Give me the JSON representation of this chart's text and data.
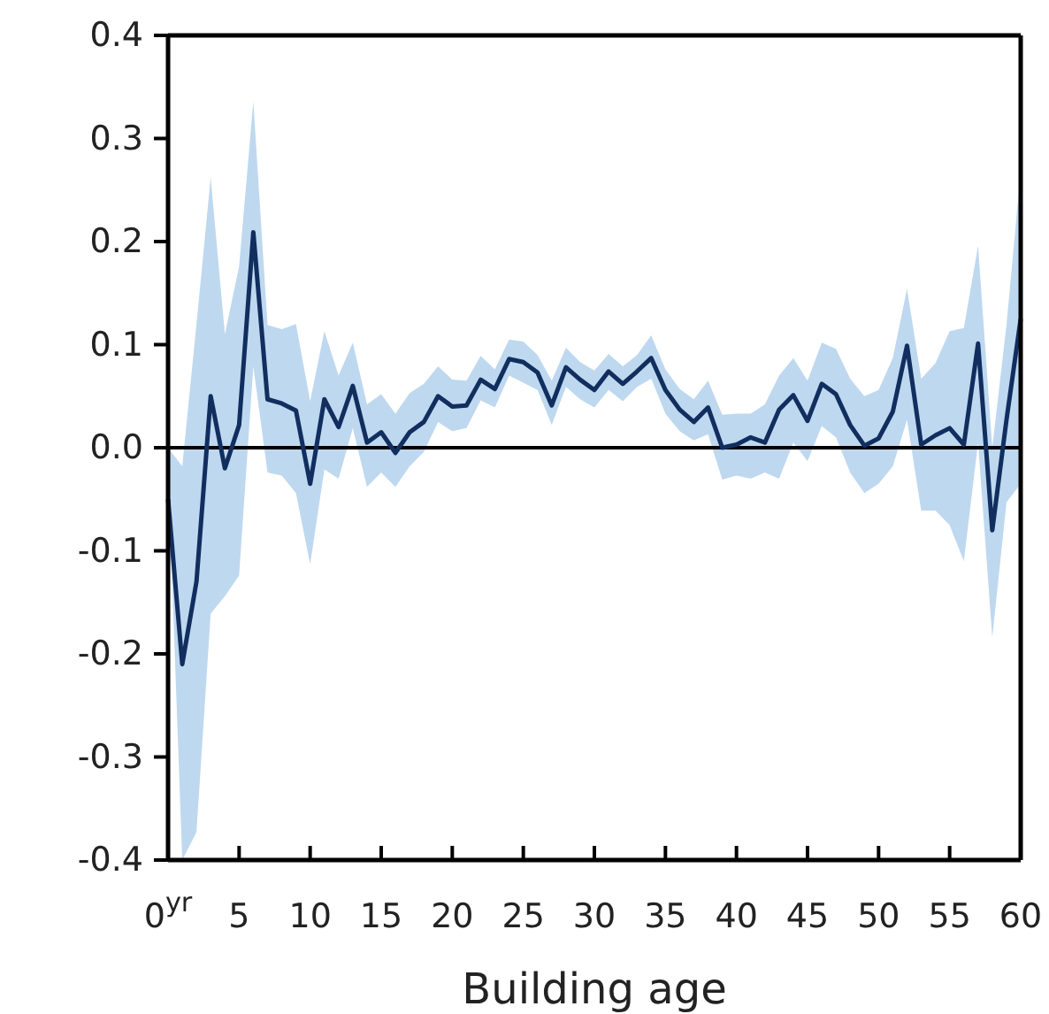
{
  "chart_data": {
    "type": "line",
    "xlabel": "Building age",
    "x": [
      0,
      1,
      2,
      3,
      4,
      5,
      6,
      7,
      8,
      9,
      10,
      11,
      12,
      13,
      14,
      15,
      16,
      17,
      18,
      19,
      20,
      21,
      22,
      23,
      24,
      25,
      26,
      27,
      28,
      29,
      30,
      31,
      32,
      33,
      34,
      35,
      36,
      37,
      38,
      39,
      40,
      41,
      42,
      43,
      44,
      45,
      46,
      47,
      48,
      49,
      50,
      51,
      52,
      53,
      54,
      55,
      56,
      57,
      58,
      59,
      60
    ],
    "series": [
      {
        "color": "#112e5f",
        "values": [
          -0.05,
          -0.21,
          -0.13,
          0.05,
          -0.02,
          0.022,
          0.209,
          0.047,
          0.043,
          0.036,
          -0.035,
          0.047,
          0.02,
          0.06,
          0.005,
          0.015,
          -0.005,
          0.015,
          0.025,
          0.05,
          0.04,
          0.041,
          0.066,
          0.057,
          0.086,
          0.083,
          0.073,
          0.041,
          0.078,
          0.066,
          0.056,
          0.074,
          0.062,
          0.074,
          0.087,
          0.056,
          0.037,
          0.025,
          0.039,
          0,
          0.003,
          0.01,
          0.005,
          0.037,
          0.051,
          0.026,
          0.062,
          0.052,
          0.022,
          0.002,
          0.009,
          0.035,
          0.099,
          0.003,
          0.012,
          0.019,
          0.003,
          0.101,
          -0.08,
          0.027,
          0.125
        ],
        "upper": [
          0,
          -0.018,
          0.12,
          0.262,
          0.11,
          0.176,
          0.336,
          0.119,
          0.115,
          0.12,
          0.045,
          0.113,
          0.07,
          0.102,
          0.042,
          0.052,
          0.033,
          0.053,
          0.062,
          0.079,
          0.066,
          0.065,
          0.089,
          0.076,
          0.105,
          0.103,
          0.09,
          0.065,
          0.097,
          0.083,
          0.075,
          0.091,
          0.079,
          0.09,
          0.109,
          0.076,
          0.057,
          0.047,
          0.065,
          0.032,
          0.033,
          0.033,
          0.042,
          0.07,
          0.087,
          0.065,
          0.102,
          0.096,
          0.067,
          0.05,
          0.056,
          0.087,
          0.154,
          0.067,
          0.082,
          0.113,
          0.116,
          0.196,
          0,
          0.119,
          0.268
        ],
        "lower": [
          -0.02,
          -0.4,
          -0.373,
          -0.161,
          -0.144,
          -0.124,
          0.079,
          -0.024,
          -0.027,
          -0.044,
          -0.113,
          -0.021,
          -0.03,
          0.019,
          -0.038,
          -0.024,
          -0.038,
          -0.018,
          -0.004,
          0.025,
          0.016,
          0.019,
          0.046,
          0.039,
          0.07,
          0.063,
          0.056,
          0.022,
          0.059,
          0.047,
          0.039,
          0.056,
          0.045,
          0.059,
          0.067,
          0.033,
          0.016,
          0.007,
          0.013,
          -0.031,
          -0.027,
          -0.03,
          -0.024,
          -0.03,
          0.005,
          -0.013,
          0.021,
          0.01,
          -0.024,
          -0.044,
          -0.035,
          -0.018,
          0.027,
          -0.061,
          -0.061,
          -0.075,
          -0.11,
          0.005,
          -0.184,
          -0.053,
          -0.035
        ]
      }
    ],
    "xlim": [
      0,
      60
    ],
    "xticks": [
      {
        "value": 0,
        "label": "0$^{yr}$"
      },
      5,
      10,
      15,
      20,
      25,
      30,
      35,
      40,
      45,
      50,
      55,
      60
    ],
    "ylim": [
      -0.4,
      0.4
    ],
    "yticks": [
      {
        "value": -0.4,
        "label": "-0.4"
      },
      {
        "value": -0.3,
        "label": "-0.3"
      },
      {
        "value": -0.2,
        "label": "-0.2"
      },
      {
        "value": -0.1,
        "label": "-0.1"
      },
      {
        "value": 0,
        "label": "0.0"
      },
      {
        "value": 0.1,
        "label": "0.1"
      },
      {
        "value": 0.2,
        "label": "0.2"
      },
      {
        "value": 0.3,
        "label": "0.3"
      },
      {
        "value": 0.4,
        "label": "0.4"
      }
    ],
    "ref_lines": [
      {
        "axis": "y",
        "value": 0,
        "color": "#000000"
      }
    ],
    "grid": false,
    "line_style": "solid",
    "marker": "none"
  }
}
